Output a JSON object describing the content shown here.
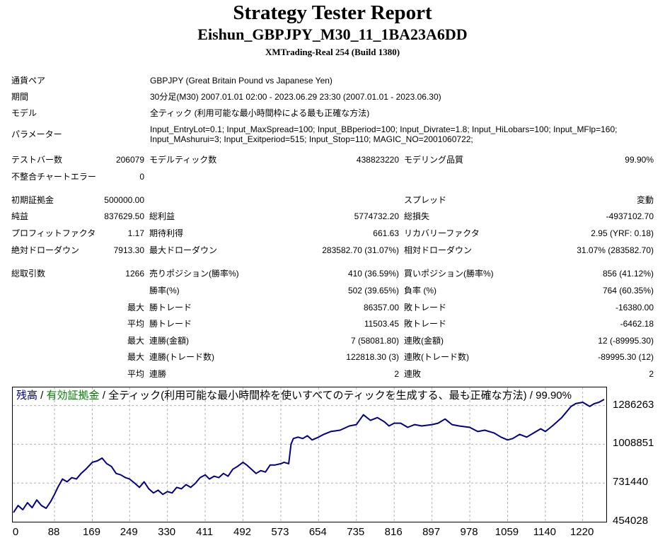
{
  "header": {
    "title": "Strategy Tester Report",
    "subtitle": "Eishun_GBPJPY_M30_11_1BA23A6DD",
    "server": "XMTrading-Real 254 (Build 1380)"
  },
  "info": {
    "symbol_label": "通貨ペア",
    "symbol_value": "GBPJPY (Great Britain Pound vs Japanese Yen)",
    "period_label": "期間",
    "period_value": "30分足(M30) 2007.01.01 02:00 - 2023.06.29 23:30 (2007.01.01 - 2023.06.30)",
    "model_label": "モデル",
    "model_value": "全ティック (利用可能な最小時間枠による最も正確な方法)",
    "params_label": "パラメーター",
    "params_line1": "Input_EntryLot=0.1; Input_MaxSpread=100; Input_BBperiod=100; Input_Divrate=1.8; Input_HiLobars=100; Input_MFlp=160;",
    "params_line2": "Input_MAshurui=3; Input_Exitperiod=515; Input_Stop=110; MAGIC_NO=2001060722;"
  },
  "quality": {
    "bars_label": "テストバー数",
    "bars_value": "206079",
    "ticks_label": "モデルティック数",
    "ticks_value": "438823220",
    "quality_label": "モデリング品質",
    "quality_value": "99.90%",
    "errors_label": "不整合チャートエラー",
    "errors_value": "0"
  },
  "results": {
    "deposit_label": "初期証拠金",
    "deposit_value": "500000.00",
    "spread_label": "スプレッド",
    "spread_value": "変動",
    "net_label": "純益",
    "net_value": "837629.50",
    "gross_profit_label": "総利益",
    "gross_profit_value": "5774732.20",
    "gross_loss_label": "総損失",
    "gross_loss_value": "-4937102.70",
    "pf_label": "プロフィットファクタ",
    "pf_value": "1.17",
    "expected_label": "期待利得",
    "expected_value": "661.63",
    "recovery_label": "リカバリーファクタ",
    "recovery_value": "2.95 (YRF: 0.18)",
    "abs_dd_label": "絶対ドローダウン",
    "abs_dd_value": "7913.30",
    "max_dd_label": "最大ドローダウン",
    "max_dd_value": "283582.70 (31.07%)",
    "rel_dd_label": "相対ドローダウン",
    "rel_dd_value": "31.07% (283582.70)"
  },
  "trades": {
    "total_label": "総取引数",
    "total_value": "1266",
    "short_label": "売りポジション(勝率%)",
    "short_value": "410 (36.59%)",
    "long_label": "買いポジション(勝率%)",
    "long_value": "856 (41.12%)",
    "winrate_label": "勝率(%)",
    "winrate_value": "502 (39.65%)",
    "lossrate_label": "負率 (%)",
    "lossrate_value": "764 (60.35%)",
    "max_prefix": "最大",
    "avg_prefix": "平均",
    "max_win_label": "勝トレード",
    "max_win_value": "86357.00",
    "max_loss_label": "敗トレード",
    "max_loss_value": "-16380.00",
    "avg_win_label": "勝トレード",
    "avg_win_value": "11503.45",
    "avg_loss_label": "敗トレード",
    "avg_loss_value": "-6462.18",
    "consec_win_amt_label": "連勝(金額)",
    "consec_win_amt_value": "7 (58081.80)",
    "consec_loss_amt_label": "連敗(金額)",
    "consec_loss_amt_value": "12 (-89995.30)",
    "consec_win_trd_label": "連勝(トレード数)",
    "consec_win_trd_value": "122818.30 (3)",
    "consec_loss_trd_label": "連敗(トレード数)",
    "consec_loss_trd_value": "-89995.30 (12)",
    "avg_consec_win_label": "連勝",
    "avg_consec_win_value": "2",
    "avg_consec_loss_label": "連敗",
    "avg_consec_loss_value": "2"
  },
  "chart_legend": {
    "balance": "残高",
    "sep1": " / ",
    "equity": "有効証拠金",
    "sep2": " / ",
    "rest": "全ティック(利用可能な最小時間枠を使いすべてのティックを生成する、最も正確な方法) / 99.90%"
  },
  "chart_data": {
    "type": "line",
    "title": "",
    "xlabel": "",
    "ylabel": "",
    "colors": {
      "balance": "#00008b",
      "grid": "#b0b0b0"
    },
    "grid": true,
    "x_ticks": [
      "0",
      "88",
      "169",
      "249",
      "330",
      "411",
      "492",
      "573",
      "654",
      "735",
      "816",
      "897",
      "978",
      "1059",
      "1140",
      "1220"
    ],
    "y_ticks": [
      "1286263",
      "1008851",
      "731440",
      "454028"
    ],
    "xlim": [
      0,
      1266
    ],
    "ylim": [
      454028,
      1406000
    ],
    "series": [
      {
        "x": [
          0,
          10,
          20,
          30,
          40,
          50,
          60,
          70,
          80,
          88,
          95,
          105,
          115,
          125,
          135,
          145,
          155,
          169,
          180,
          190,
          200,
          210,
          220,
          230,
          240,
          249,
          260,
          270,
          280,
          290,
          300,
          310,
          320,
          330,
          340,
          350,
          360,
          370,
          380,
          390,
          400,
          411,
          420,
          430,
          440,
          450,
          460,
          470,
          480,
          492,
          500,
          510,
          520,
          530,
          540,
          550,
          560,
          573,
          580,
          590,
          595,
          600,
          610,
          620,
          630,
          640,
          654,
          665,
          680,
          700,
          720,
          735,
          750,
          765,
          780,
          795,
          805,
          816,
          830,
          845,
          860,
          875,
          897,
          910,
          925,
          940,
          955,
          978,
          995,
          1010,
          1030,
          1045,
          1059,
          1070,
          1085,
          1100,
          1115,
          1130,
          1140,
          1155,
          1165,
          1175,
          1185,
          1195,
          1205,
          1220,
          1235,
          1245,
          1255,
          1266
        ],
        "y": [
          520000,
          570000,
          540000,
          590000,
          555000,
          610000,
          570000,
          550000,
          600000,
          650000,
          700000,
          760000,
          740000,
          770000,
          760000,
          800000,
          830000,
          880000,
          890000,
          910000,
          870000,
          850000,
          800000,
          790000,
          770000,
          760000,
          730000,
          700000,
          740000,
          690000,
          660000,
          680000,
          650000,
          670000,
          660000,
          700000,
          690000,
          720000,
          700000,
          730000,
          770000,
          790000,
          760000,
          780000,
          770000,
          800000,
          780000,
          830000,
          850000,
          880000,
          860000,
          830000,
          800000,
          820000,
          810000,
          860000,
          860000,
          870000,
          880000,
          870000,
          1010000,
          1050000,
          1060000,
          1050000,
          1070000,
          1040000,
          1060000,
          1080000,
          1100000,
          1110000,
          1140000,
          1150000,
          1220000,
          1180000,
          1200000,
          1170000,
          1140000,
          1160000,
          1160000,
          1130000,
          1150000,
          1140000,
          1150000,
          1160000,
          1190000,
          1150000,
          1140000,
          1130000,
          1100000,
          1110000,
          1090000,
          1060000,
          1040000,
          1050000,
          1080000,
          1060000,
          1090000,
          1120000,
          1100000,
          1140000,
          1170000,
          1200000,
          1240000,
          1280000,
          1300000,
          1310000,
          1280000,
          1300000,
          1310000,
          1330000
        ]
      }
    ]
  }
}
